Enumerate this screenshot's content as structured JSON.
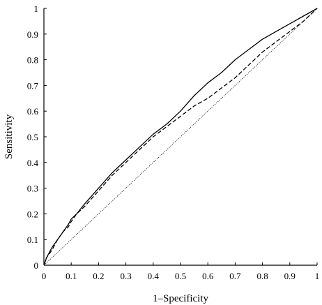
{
  "chart_data": {
    "type": "line",
    "title": "",
    "xlabel": "1–Specificity",
    "ylabel": "Sensitivity",
    "xlim": [
      0,
      1
    ],
    "ylim": [
      0,
      1
    ],
    "xticks": [
      "0",
      "0.1",
      "0.2",
      "0.3",
      "0.4",
      "0.5",
      "0.6",
      "0.7",
      "0.8",
      "0.9",
      "1"
    ],
    "yticks": [
      "0",
      "0.1",
      "0.2",
      "0.3",
      "0.4",
      "0.5",
      "0.6",
      "0.7",
      "0.8",
      "0.9",
      "1"
    ],
    "grid": false,
    "legend": "none",
    "series": [
      {
        "style": "solid",
        "color": "#000000",
        "x": [
          0,
          0.01,
          0.03,
          0.05,
          0.07,
          0.09,
          0.1,
          0.12,
          0.15,
          0.2,
          0.25,
          0.3,
          0.35,
          0.4,
          0.45,
          0.5,
          0.55,
          0.6,
          0.65,
          0.7,
          0.75,
          0.8,
          0.85,
          0.9,
          0.95,
          1
        ],
        "y": [
          0,
          0.03,
          0.07,
          0.1,
          0.13,
          0.16,
          0.18,
          0.2,
          0.24,
          0.3,
          0.36,
          0.41,
          0.46,
          0.51,
          0.55,
          0.6,
          0.66,
          0.71,
          0.75,
          0.8,
          0.84,
          0.88,
          0.91,
          0.94,
          0.97,
          1
        ]
      },
      {
        "style": "dashed",
        "color": "#000000",
        "x": [
          0,
          0.01,
          0.03,
          0.05,
          0.07,
          0.09,
          0.1,
          0.12,
          0.15,
          0.2,
          0.25,
          0.3,
          0.35,
          0.4,
          0.45,
          0.5,
          0.55,
          0.6,
          0.65,
          0.7,
          0.75,
          0.8,
          0.85,
          0.9,
          0.95,
          1
        ],
        "y": [
          0,
          0.03,
          0.06,
          0.1,
          0.13,
          0.15,
          0.17,
          0.2,
          0.23,
          0.29,
          0.35,
          0.4,
          0.45,
          0.5,
          0.54,
          0.58,
          0.62,
          0.65,
          0.69,
          0.73,
          0.78,
          0.83,
          0.87,
          0.91,
          0.95,
          1
        ]
      },
      {
        "style": "dotted",
        "color": "#000000",
        "x": [
          0,
          1
        ],
        "y": [
          0,
          1
        ]
      }
    ]
  }
}
